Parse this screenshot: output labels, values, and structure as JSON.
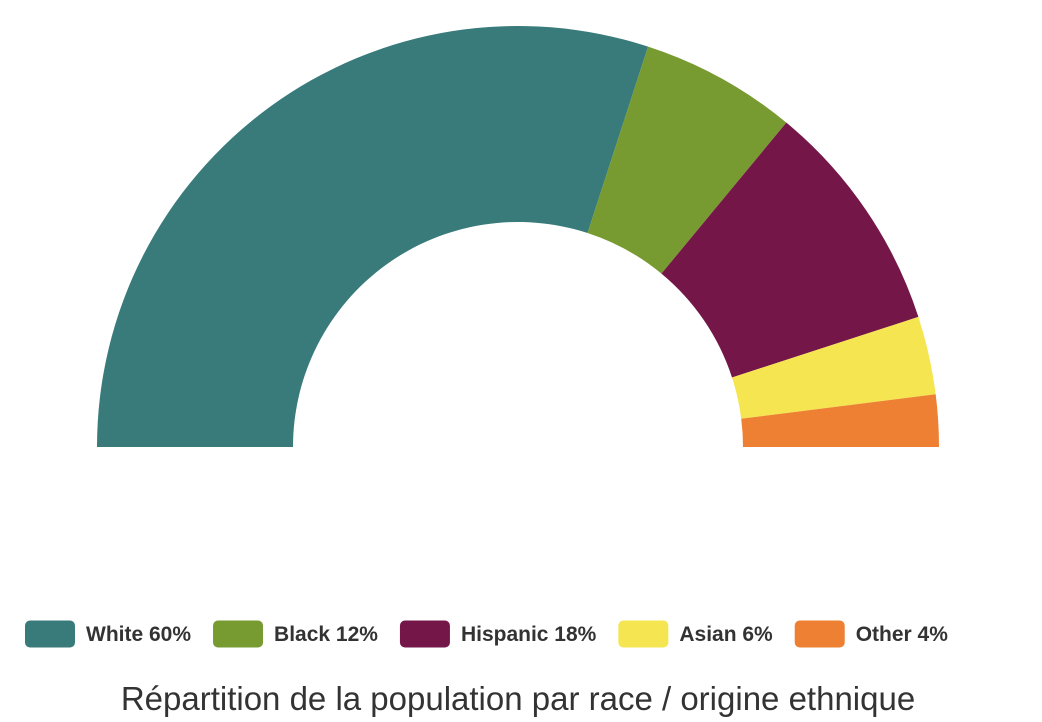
{
  "chart_data": {
    "type": "pie",
    "variant": "semi-donut",
    "title": "Répartition de la population par race / origine ethnique",
    "series": [
      {
        "name": "White",
        "value": 60,
        "label": "White 60%",
        "color": "#387b7a"
      },
      {
        "name": "Black",
        "value": 12,
        "label": "Black 12%",
        "color": "#779b30"
      },
      {
        "name": "Hispanic",
        "value": 18,
        "label": "Hispanic 18%",
        "color": "#741748"
      },
      {
        "name": "Asian",
        "value": 6,
        "label": "Asian 6%",
        "color": "#f5e551"
      },
      {
        "name": "Other",
        "value": 4,
        "label": "Other 4%",
        "color": "#ee8033"
      }
    ],
    "legend_position": "bottom"
  }
}
